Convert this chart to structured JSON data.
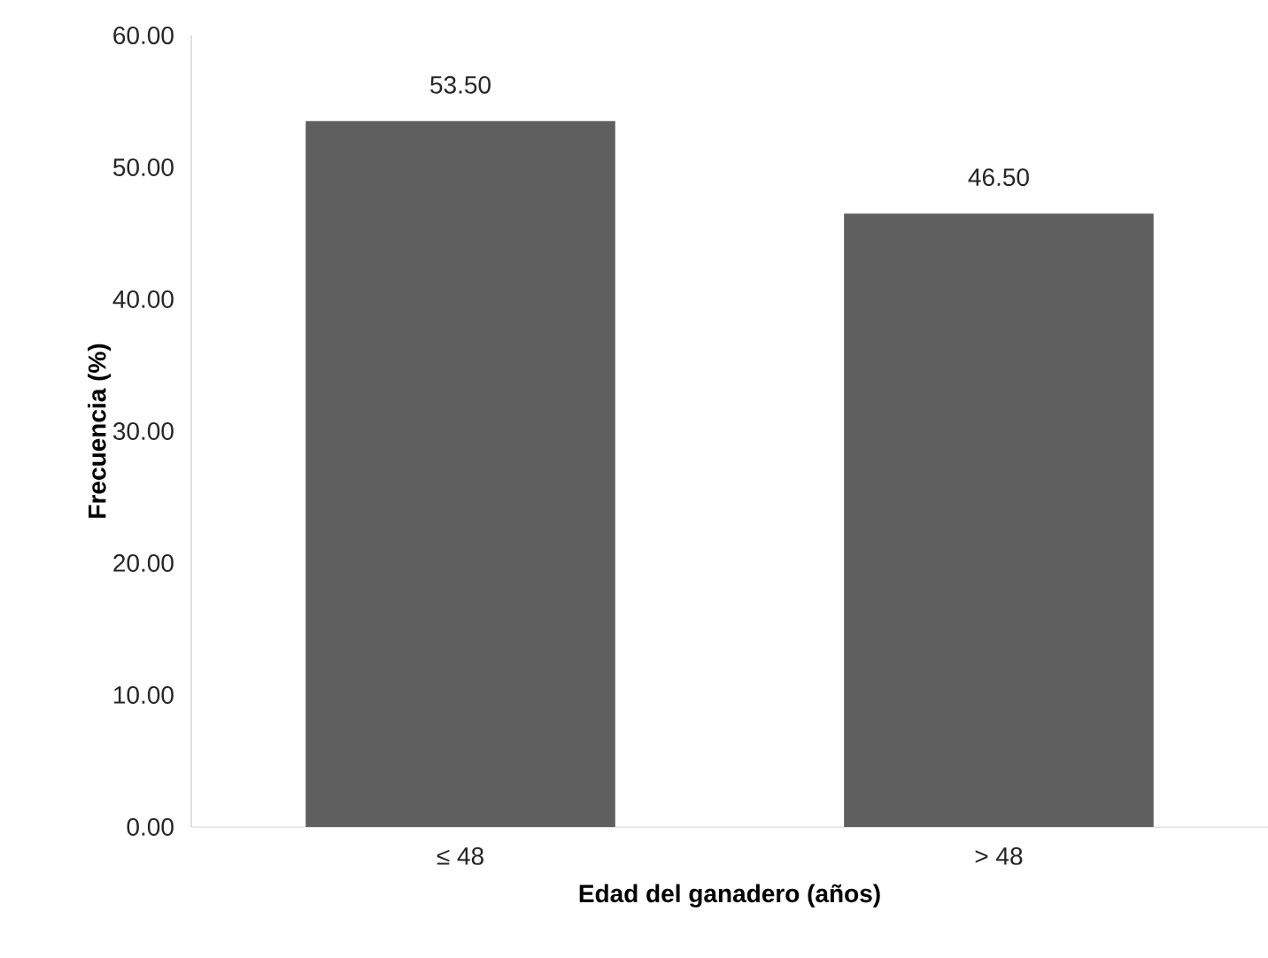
{
  "chart_data": {
    "type": "bar",
    "xlabel": "Edad del ganadero (años)",
    "ylabel": "Frecuencia (%)",
    "categories": [
      "≤ 48",
      "> 48"
    ],
    "values": [
      53.5,
      46.5
    ],
    "color": "#5f5f5f",
    "value_labels": [
      "53.50",
      "46.50"
    ],
    "ylim": [
      0,
      60
    ],
    "yticks": [
      {
        "value": 0,
        "label": "0.00"
      },
      {
        "value": 10,
        "label": "10.00"
      },
      {
        "value": 20,
        "label": "20.00"
      },
      {
        "value": 30,
        "label": "30.00"
      },
      {
        "value": 40,
        "label": "40.00"
      },
      {
        "value": 50,
        "label": "50.00"
      },
      {
        "value": 60,
        "label": "60.00"
      }
    ],
    "grid": false
  }
}
